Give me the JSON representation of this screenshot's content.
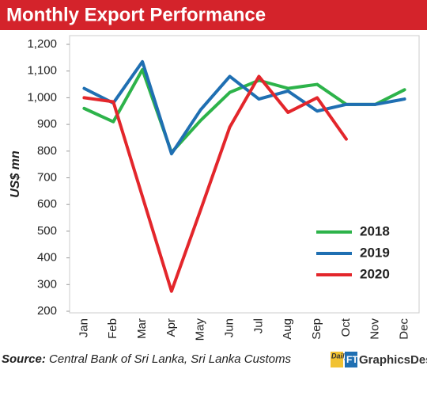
{
  "chart_data": {
    "type": "line",
    "title": "Monthly Export Performance",
    "y_label": "US$ mn",
    "categories": [
      "Jan",
      "Feb",
      "Mar",
      "Apr",
      "May",
      "Jun",
      "Jul",
      "Aug",
      "Sep",
      "Oct",
      "Nov",
      "Dec"
    ],
    "series": [
      {
        "name": "2018",
        "color": "#2db34a",
        "values": [
          960,
          910,
          1105,
          795,
          915,
          1020,
          1065,
          1035,
          1050,
          975,
          975,
          1030
        ]
      },
      {
        "name": "2019",
        "color": "#1f6fb2",
        "values": [
          1035,
          980,
          1135,
          790,
          955,
          1080,
          995,
          1025,
          950,
          975,
          975,
          995
        ]
      },
      {
        "name": "2020",
        "color": "#e3262b",
        "values": [
          1000,
          985,
          630,
          275,
          580,
          890,
          1080,
          945,
          1000,
          845,
          null,
          null
        ]
      }
    ],
    "ylim": [
      200,
      1200
    ],
    "yticks": [
      200,
      300,
      400,
      500,
      600,
      700,
      800,
      900,
      {
        "value": 1000,
        "label": "1,000"
      },
      {
        "value": 1100,
        "label": "1,100"
      },
      {
        "value": 1200,
        "label": "1,200"
      }
    ],
    "grid": false,
    "legend_position": "lower right",
    "source_label": "Source:",
    "source": "Central Bank of Sri Lanka, Sri Lanka Customs",
    "logo": {
      "prefix": "Daily",
      "mark": "FT",
      "name": "GraphicsDesk"
    }
  }
}
